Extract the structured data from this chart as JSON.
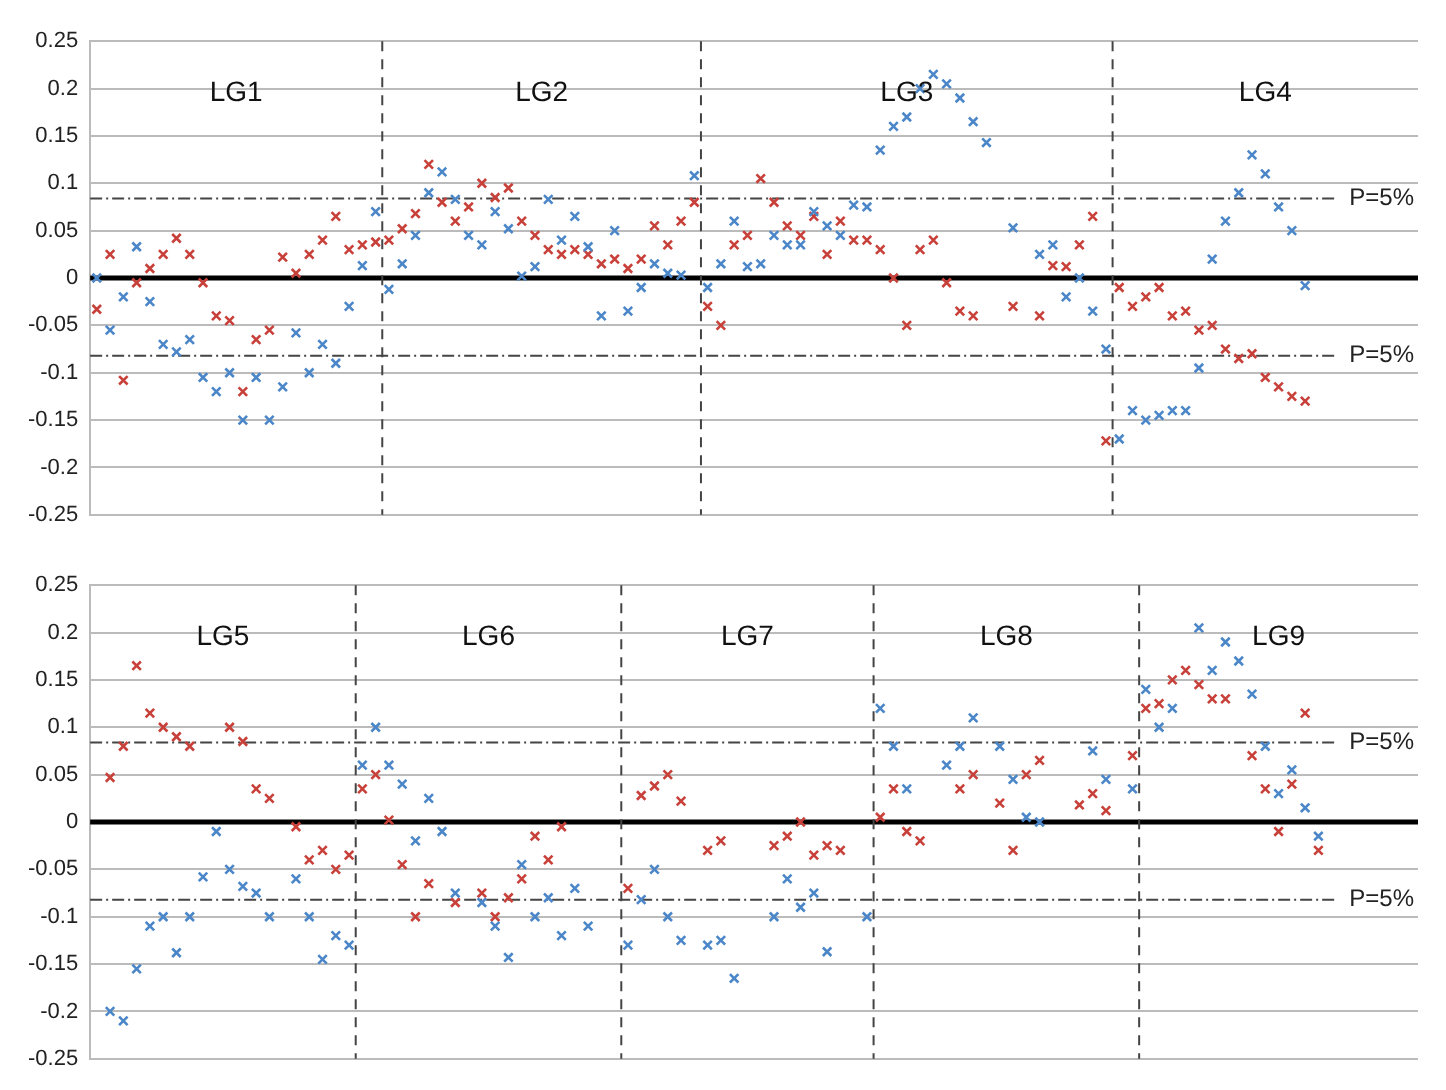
{
  "chart_data": [
    {
      "type": "scatter",
      "categories": [
        null,
        null,
        null,
        null,
        null,
        null,
        null,
        null,
        null,
        null,
        null,
        null,
        null,
        null,
        null,
        null,
        null,
        null,
        null,
        null,
        null,
        null,
        null,
        null,
        null,
        null,
        null,
        null,
        null,
        null,
        null,
        null,
        null,
        null,
        null,
        null,
        null,
        null,
        null,
        null,
        null,
        null,
        null,
        null,
        null,
        null,
        null,
        null,
        null,
        null,
        null,
        null,
        null,
        null,
        null,
        null,
        null,
        null,
        null,
        null,
        null,
        null,
        null,
        null,
        null,
        null,
        null,
        null,
        null,
        null,
        null,
        null,
        null,
        null,
        null,
        null,
        null,
        null,
        null,
        null,
        null,
        null,
        null,
        null,
        null,
        null,
        null,
        null,
        null,
        null,
        null,
        null,
        null,
        null,
        null,
        null,
        null,
        null,
        null,
        null
      ],
      "ylim": [
        -0.25,
        0.25
      ],
      "yticks": [
        -0.25,
        -0.2,
        -0.15,
        -0.1,
        -0.05,
        0,
        0.05,
        0.1,
        0.15,
        0.2,
        0.25
      ],
      "tick_labels": "y",
      "grid": "y",
      "marker": "cross",
      "series": [
        {
          "color": "#4a86c8",
          "values": [
            0.0,
            -0.055,
            -0.02,
            0.033,
            -0.025,
            -0.07,
            -0.078,
            -0.065,
            -0.105,
            -0.12,
            -0.1,
            -0.15,
            -0.105,
            -0.15,
            -0.115,
            -0.058,
            -0.1,
            -0.07,
            -0.09,
            -0.03,
            0.013,
            0.07,
            -0.012,
            0.015,
            0.045,
            0.09,
            0.112,
            0.083,
            0.045,
            0.035,
            0.07,
            0.052,
            0.002,
            0.012,
            0.083,
            0.04,
            0.065,
            0.033,
            -0.04,
            0.05,
            -0.035,
            -0.01,
            0.015,
            0.005,
            0.003,
            0.108,
            -0.01,
            0.015,
            0.06,
            0.012,
            0.015,
            0.045,
            0.035,
            0.035,
            0.07,
            0.055,
            0.045,
            0.077,
            0.075,
            0.135,
            0.16,
            0.17,
            0.2,
            0.215,
            0.205,
            0.19,
            0.165,
            0.143,
            null,
            0.053,
            null,
            0.025,
            0.035,
            -0.02,
            0.0,
            -0.035,
            -0.075,
            -0.17,
            -0.14,
            -0.15,
            -0.145,
            -0.14,
            -0.14,
            -0.095,
            0.02,
            0.06,
            0.09,
            0.13,
            0.11,
            0.075,
            0.05,
            -0.008,
            null,
            null,
            null,
            null,
            null,
            null,
            null,
            null
          ]
        },
        {
          "color": "#c8403a",
          "values": [
            -0.033,
            0.025,
            -0.108,
            -0.005,
            0.01,
            0.025,
            0.042,
            0.025,
            -0.005,
            -0.04,
            -0.045,
            -0.12,
            -0.065,
            -0.055,
            0.022,
            0.005,
            0.025,
            0.04,
            0.065,
            0.03,
            0.035,
            0.038,
            0.04,
            0.052,
            0.068,
            0.12,
            0.08,
            0.06,
            0.075,
            0.1,
            0.085,
            0.095,
            0.06,
            0.045,
            0.03,
            0.025,
            0.03,
            0.025,
            0.015,
            0.02,
            0.01,
            0.02,
            0.055,
            0.035,
            0.06,
            0.08,
            -0.03,
            -0.05,
            0.035,
            0.045,
            0.105,
            0.08,
            0.055,
            0.045,
            0.065,
            0.025,
            0.06,
            0.04,
            0.04,
            0.03,
            0.0,
            -0.05,
            0.03,
            0.04,
            -0.005,
            -0.035,
            -0.04,
            null,
            null,
            -0.03,
            null,
            -0.04,
            0.013,
            0.012,
            0.035,
            0.065,
            -0.172,
            -0.01,
            -0.03,
            -0.02,
            -0.01,
            -0.04,
            -0.035,
            -0.055,
            -0.05,
            -0.075,
            -0.085,
            -0.08,
            -0.105,
            -0.115,
            -0.125,
            -0.13,
            null,
            null,
            null,
            null,
            null,
            null,
            null,
            null
          ]
        }
      ],
      "ref_lines": [
        {
          "axis": "y",
          "value": 0,
          "color": "#000000",
          "line_style": "solid"
        },
        {
          "axis": "y",
          "value": 0.084,
          "line_style": "dotted"
        },
        {
          "axis": "y",
          "value": -0.082,
          "line_style": "dotted"
        }
      ],
      "annotations": [
        "LG1",
        "LG2",
        "LG3",
        "LG4",
        "P=5%",
        "P=5%"
      ]
    },
    {
      "type": "scatter",
      "categories": [
        null,
        null,
        null,
        null,
        null,
        null,
        null,
        null,
        null,
        null,
        null,
        null,
        null,
        null,
        null,
        null,
        null,
        null,
        null,
        null,
        null,
        null,
        null,
        null,
        null,
        null,
        null,
        null,
        null,
        null,
        null,
        null,
        null,
        null,
        null,
        null,
        null,
        null,
        null,
        null,
        null,
        null,
        null,
        null,
        null,
        null,
        null,
        null,
        null,
        null,
        null,
        null,
        null,
        null,
        null,
        null,
        null,
        null,
        null,
        null,
        null,
        null,
        null,
        null,
        null,
        null,
        null,
        null,
        null,
        null,
        null,
        null,
        null,
        null,
        null,
        null,
        null,
        null,
        null,
        null,
        null,
        null,
        null,
        null,
        null,
        null,
        null,
        null,
        null,
        null,
        null,
        null,
        null,
        null,
        null,
        null,
        null,
        null,
        null,
        null
      ],
      "ylim": [
        -0.25,
        0.25
      ],
      "yticks": [
        -0.25,
        -0.2,
        -0.15,
        -0.1,
        -0.05,
        0,
        0.05,
        0.1,
        0.15,
        0.2,
        0.25
      ],
      "tick_labels": "y",
      "grid": "y",
      "marker": "cross",
      "series": [
        {
          "color": "#4a86c8",
          "values": [
            null,
            -0.2,
            -0.21,
            -0.155,
            -0.11,
            -0.1,
            -0.138,
            -0.1,
            -0.058,
            -0.01,
            -0.05,
            -0.068,
            -0.075,
            -0.1,
            null,
            -0.06,
            -0.1,
            -0.145,
            -0.12,
            -0.13,
            0.06,
            0.1,
            0.06,
            0.04,
            -0.02,
            0.025,
            -0.01,
            -0.075,
            null,
            -0.085,
            -0.11,
            -0.143,
            -0.045,
            -0.1,
            -0.08,
            -0.12,
            -0.07,
            -0.11,
            null,
            null,
            -0.13,
            -0.082,
            -0.05,
            -0.1,
            -0.125,
            null,
            -0.13,
            -0.125,
            -0.165,
            null,
            null,
            -0.1,
            -0.06,
            -0.09,
            -0.075,
            -0.137,
            null,
            null,
            -0.1,
            0.12,
            0.08,
            0.035,
            null,
            null,
            0.06,
            0.08,
            0.11,
            null,
            0.08,
            0.045,
            0.005,
            0.0,
            null,
            null,
            null,
            0.075,
            0.045,
            null,
            0.035,
            0.14,
            0.1,
            0.12,
            null,
            0.205,
            0.16,
            0.19,
            0.17,
            0.135,
            0.08,
            0.03,
            0.055,
            0.015,
            -0.015,
            null,
            null,
            null,
            null,
            null,
            null,
            null
          ]
        },
        {
          "color": "#c8403a",
          "values": [
            null,
            0.047,
            0.08,
            0.165,
            0.115,
            0.1,
            0.09,
            0.08,
            null,
            null,
            0.1,
            0.085,
            0.035,
            0.025,
            null,
            -0.005,
            -0.04,
            -0.03,
            -0.05,
            -0.035,
            0.035,
            0.05,
            0.002,
            -0.045,
            -0.1,
            -0.065,
            null,
            -0.085,
            null,
            -0.075,
            -0.1,
            -0.08,
            -0.06,
            -0.015,
            -0.04,
            -0.005,
            null,
            null,
            null,
            null,
            -0.07,
            0.028,
            0.038,
            0.05,
            0.022,
            null,
            -0.03,
            -0.02,
            null,
            null,
            null,
            -0.025,
            -0.015,
            0.0,
            -0.035,
            -0.025,
            -0.03,
            null,
            null,
            0.005,
            0.035,
            -0.01,
            -0.02,
            null,
            null,
            0.035,
            0.05,
            null,
            0.02,
            -0.03,
            0.05,
            0.065,
            null,
            null,
            0.018,
            0.03,
            0.012,
            null,
            0.07,
            0.12,
            0.125,
            0.15,
            0.16,
            0.145,
            0.13,
            0.13,
            null,
            0.07,
            0.035,
            -0.01,
            0.04,
            0.115,
            -0.03,
            null,
            null,
            null,
            null,
            null,
            null,
            null
          ]
        }
      ],
      "ref_lines": [
        {
          "axis": "y",
          "value": 0,
          "color": "#000000",
          "line_style": "solid"
        },
        {
          "axis": "y",
          "value": 0.084,
          "line_style": "dotted"
        },
        {
          "axis": "y",
          "value": -0.082,
          "line_style": "dotted"
        }
      ],
      "annotations": [
        "LG5",
        "LG6",
        "LG7",
        "LG8",
        "LG9",
        "P=5%",
        "P=5%"
      ]
    }
  ]
}
